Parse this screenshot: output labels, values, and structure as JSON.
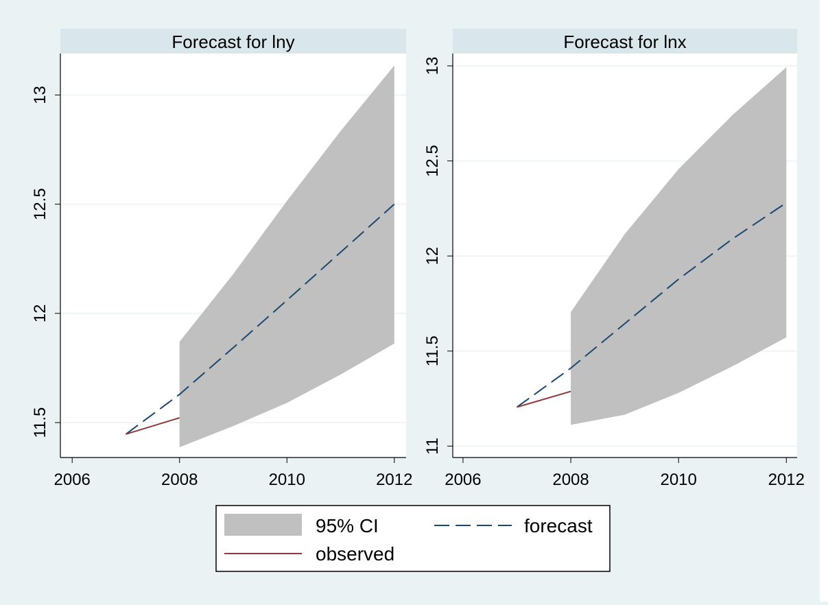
{
  "chart_data": [
    {
      "type": "line",
      "title": "Forecast for lny",
      "x": [
        2007,
        2008,
        2009,
        2010,
        2011,
        2012
      ],
      "xlim": [
        2005.78,
        2012.22
      ],
      "xticks": [
        2006,
        2008,
        2010,
        2012
      ],
      "ylim": [
        11.34,
        13.19
      ],
      "yticks": [
        11.5,
        12,
        12.5,
        13
      ],
      "grid": true,
      "series": [
        {
          "name": "95% CI",
          "color": "#c0c0c0",
          "lower": [
            null,
            11.387,
            11.484,
            11.59,
            11.72,
            11.862
          ],
          "upper": [
            null,
            11.87,
            12.18,
            12.515,
            12.835,
            13.135
          ]
        },
        {
          "name": "forecast",
          "color": "#1a476f",
          "values": [
            11.447,
            11.629,
            11.843,
            12.06,
            12.28,
            12.5
          ]
        },
        {
          "name": "observed",
          "color": "#90353b",
          "values": [
            11.447,
            11.522,
            null,
            null,
            null,
            null
          ]
        }
      ]
    },
    {
      "type": "line",
      "title": "Forecast for lnx",
      "x": [
        2007,
        2008,
        2009,
        2010,
        2011,
        2012
      ],
      "xlim": [
        2005.81,
        2012.2
      ],
      "xticks": [
        2006,
        2008,
        2010,
        2012
      ],
      "ylim": [
        10.94,
        13.065
      ],
      "yticks": [
        11,
        11.5,
        12,
        12.5,
        13
      ],
      "grid": true,
      "series": [
        {
          "name": "95% CI",
          "color": "#c0c0c0",
          "lower": [
            null,
            11.112,
            11.165,
            11.28,
            11.42,
            11.572
          ],
          "upper": [
            null,
            11.705,
            12.115,
            12.457,
            12.741,
            12.993
          ]
        },
        {
          "name": "forecast",
          "color": "#1a476f",
          "values": [
            11.205,
            11.41,
            11.644,
            11.878,
            12.09,
            12.28
          ]
        },
        {
          "name": "observed",
          "color": "#90353b",
          "values": [
            11.205,
            11.288,
            null,
            null,
            null,
            null
          ]
        }
      ]
    }
  ]
}
